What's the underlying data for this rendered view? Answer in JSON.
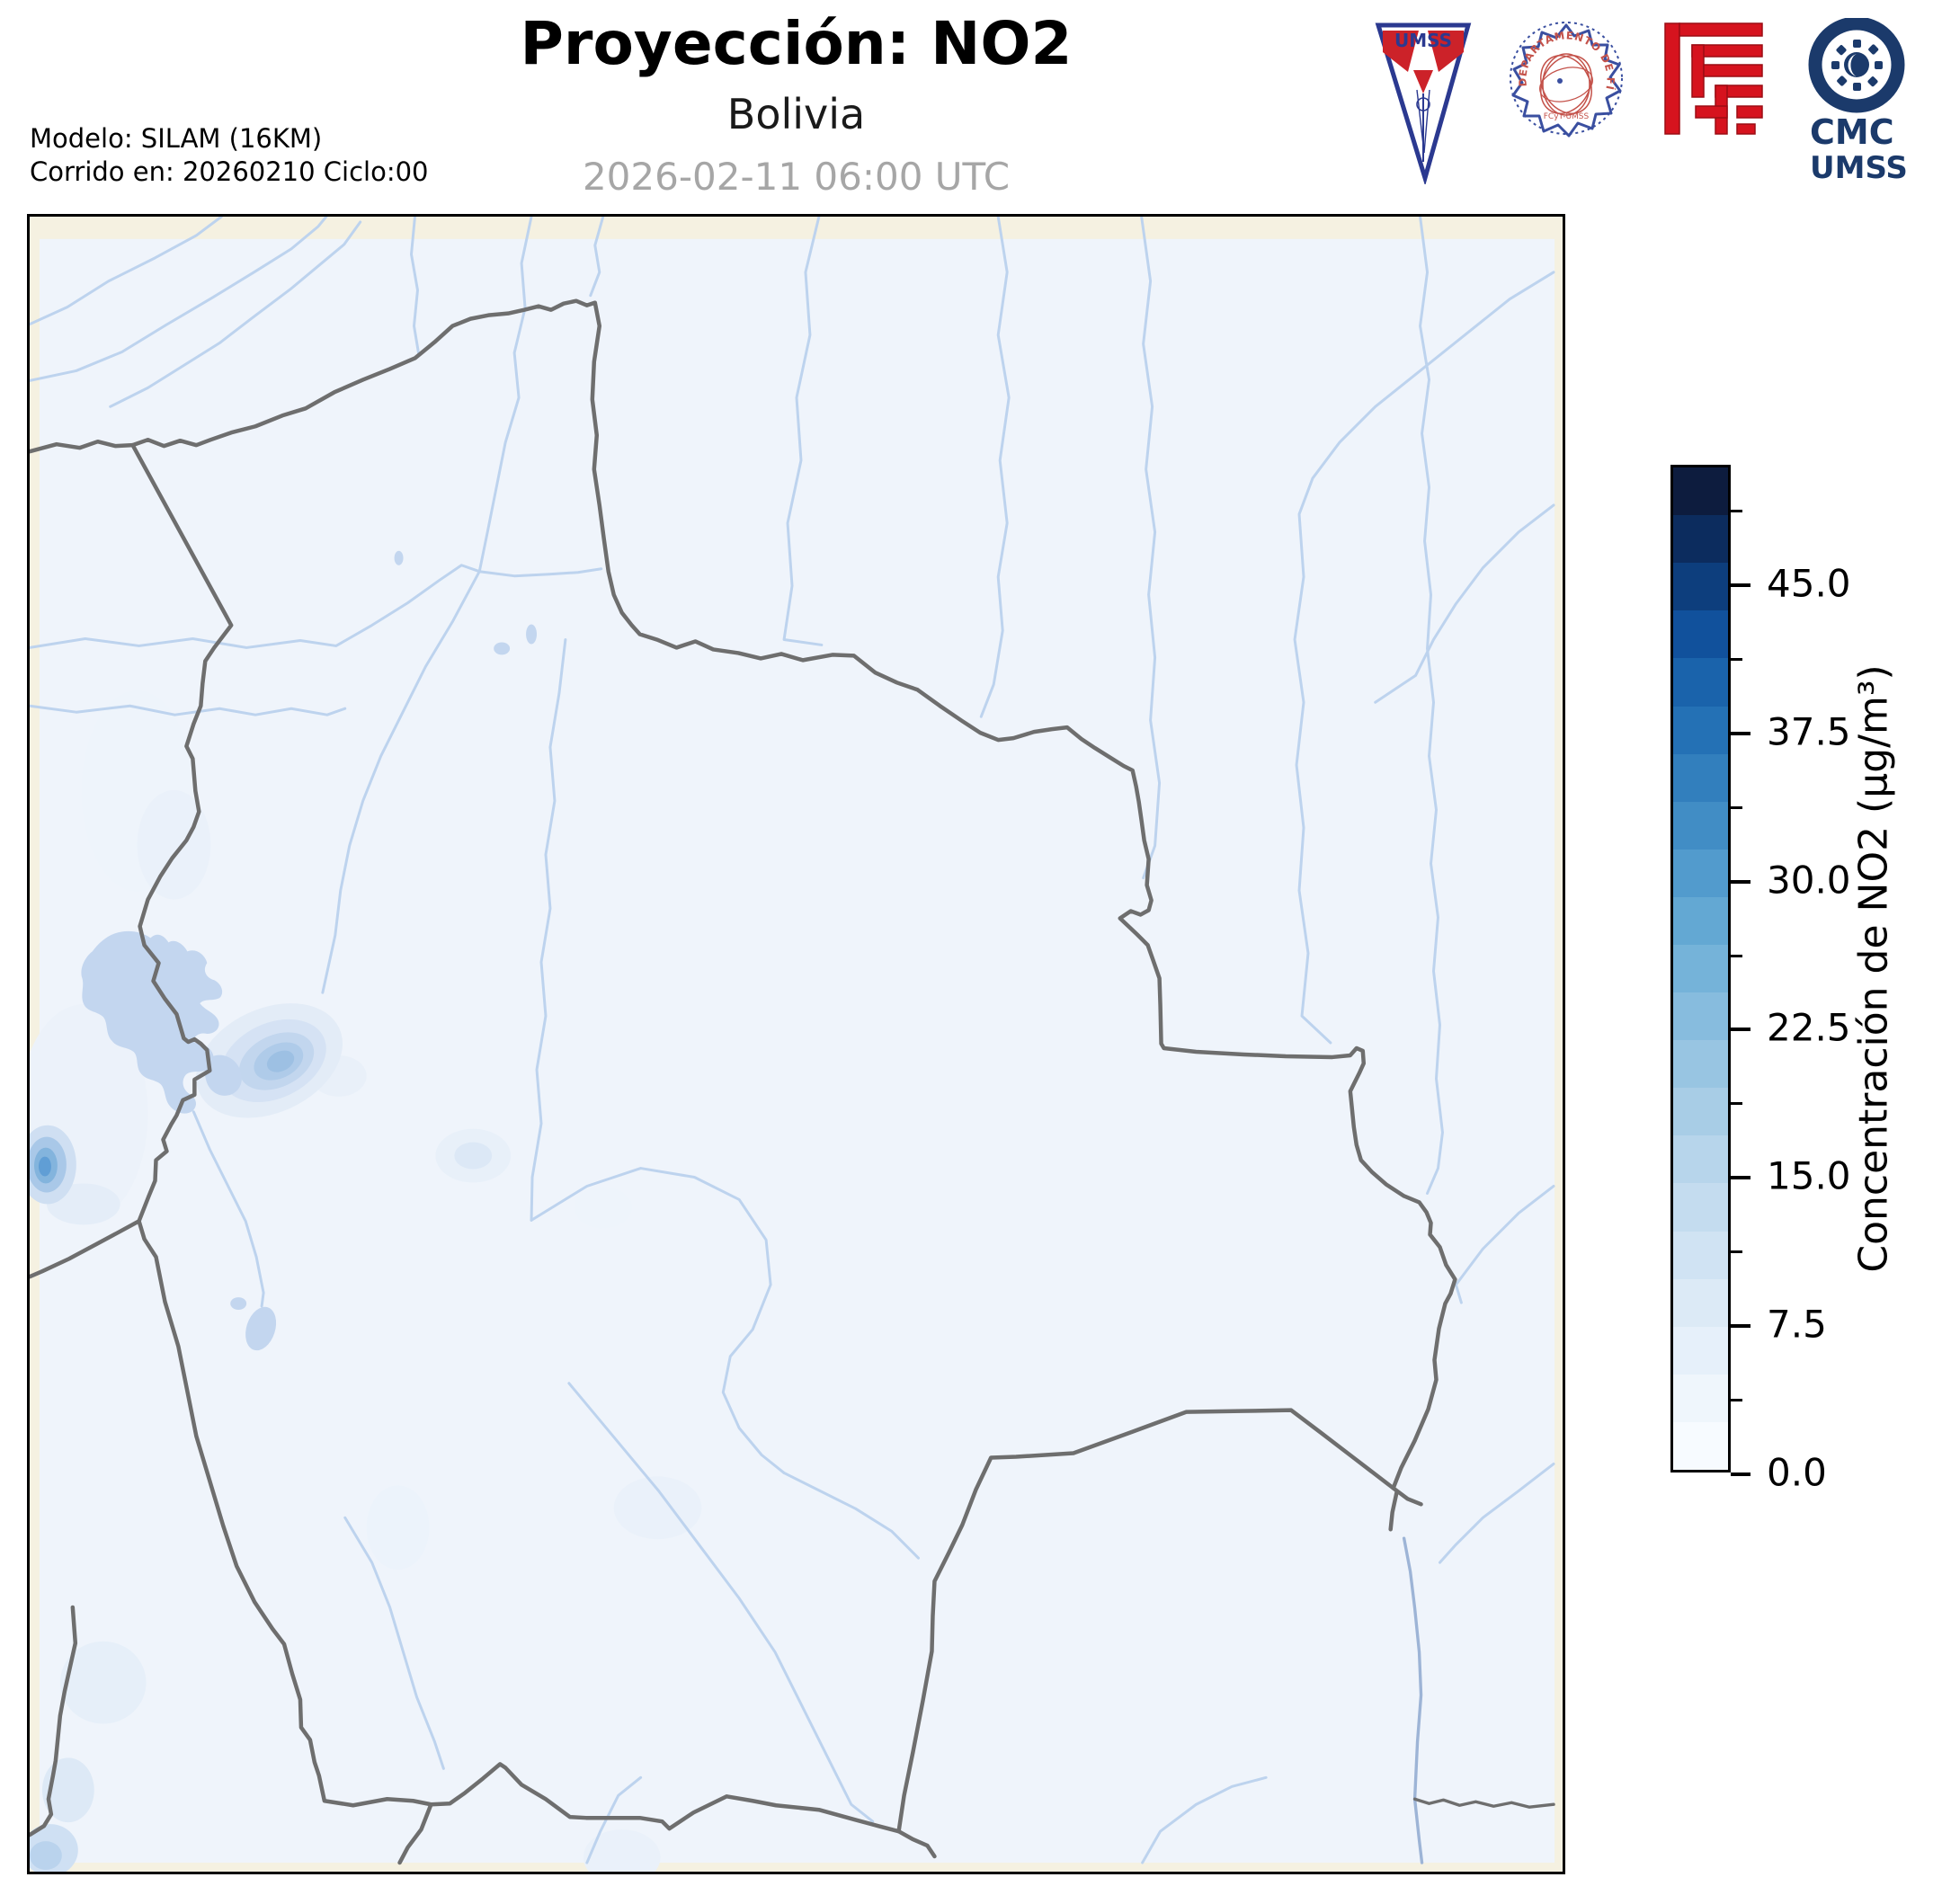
{
  "header": {
    "title": "Proyección: NO2",
    "subtitle": "Bolivia",
    "timestamp": "2026-02-11 06:00 UTC",
    "model_line1": "Modelo: SILAM (16KM)",
    "model_line2": "Corrido en: 20260210 Ciclo:00"
  },
  "logos": {
    "umss_pennant_text": "UMSS",
    "fisica_seal_text": "DEPARTAMENTO DE FÍSICA",
    "fisica_seal_subtext": "FCyT-UMSS",
    "cmc_line1": "CMC",
    "cmc_line2": "UMSS"
  },
  "colorbar": {
    "label": "Concentración de NO2 (µg/m³)",
    "unit": "µg/m³",
    "vmin": 0,
    "vmax": 51,
    "major_ticks": [
      {
        "value": 0,
        "label": "0.0"
      },
      {
        "value": 7.5,
        "label": "7.5"
      },
      {
        "value": 15,
        "label": "15.0"
      },
      {
        "value": 22.5,
        "label": "22.5"
      },
      {
        "value": 30,
        "label": "30.0"
      },
      {
        "value": 37.5,
        "label": "37.5"
      },
      {
        "value": 45,
        "label": "45.0"
      }
    ],
    "minor_ticks": [
      3.75,
      11.25,
      18.75,
      26.25,
      33.75,
      41.25,
      48.75
    ],
    "segment_colors_bottom_to_top": [
      "#f7fbff",
      "#eff6fc",
      "#e6f0fa",
      "#dceaf6",
      "#d0e3f3",
      "#c4dcef",
      "#b7d5eb",
      "#a8cde6",
      "#98c5e2",
      "#87bcde",
      "#75b3d9",
      "#63a8d3",
      "#529bcd",
      "#418dc5",
      "#327fbd",
      "#2471b5",
      "#1a63ab",
      "#11519c",
      "#0d3e7d",
      "#0c2c5e",
      "#0d1c3e"
    ]
  },
  "map": {
    "region": "Bolivia",
    "colors": {
      "frame": "#000000",
      "background": "#f5f1e1",
      "data_fill": "#eff4fb",
      "border": "#6e6e6e",
      "border_dark": "#5d6b7d",
      "river": "#bdd3ee",
      "river_dark": "#9db4d6",
      "lake": "#c3d6ef"
    }
  }
}
